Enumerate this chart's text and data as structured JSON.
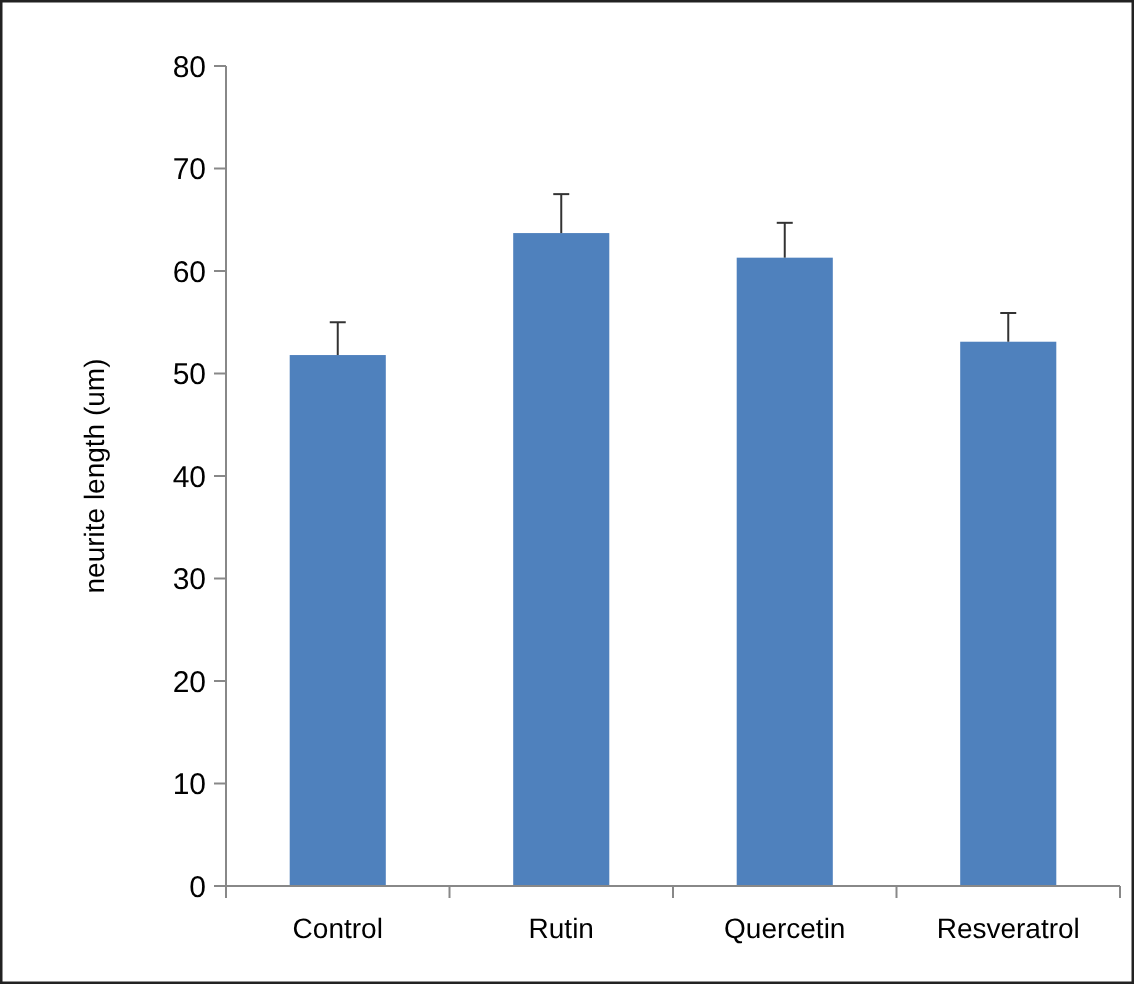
{
  "chart_data": {
    "type": "bar",
    "ylabel": "neurite length (um)",
    "categories": [
      "Control",
      "Rutin",
      "Quercetin",
      "Resveratrol"
    ],
    "values": [
      51.8,
      63.7,
      61.3,
      53.1
    ],
    "errors": [
      [
        51.8,
        55.0
      ],
      [
        63.7,
        67.5
      ],
      [
        61.3,
        64.7
      ],
      [
        53.1,
        55.9
      ]
    ],
    "color": "#4f81bd",
    "ylim": [
      0,
      80
    ],
    "yticks": [
      0,
      10,
      20,
      30,
      40,
      50,
      60,
      70,
      80
    ],
    "grid": false
  }
}
